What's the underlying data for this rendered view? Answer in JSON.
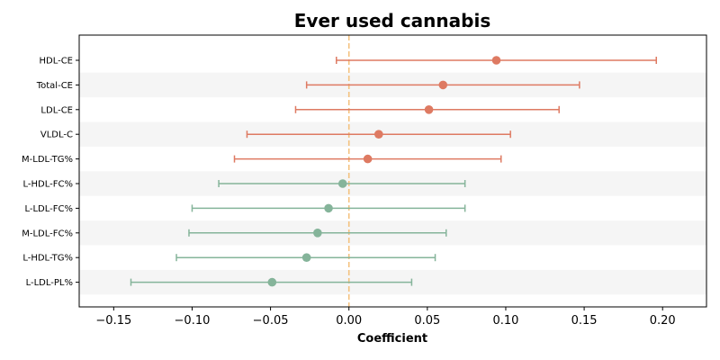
{
  "chart_data": {
    "type": "forest",
    "title": "Ever used cannabis",
    "xlabel": "Coefficient",
    "xlim": [
      -0.172,
      0.228
    ],
    "xticks": [
      -0.15,
      -0.1,
      -0.05,
      0.0,
      0.05,
      0.1,
      0.15,
      0.2
    ],
    "xtick_labels": [
      "−0.15",
      "−0.10",
      "−0.05",
      "0.00",
      "0.05",
      "0.10",
      "0.15",
      "0.20"
    ],
    "reference_line": 0.0,
    "colors": {
      "positive": "#de7a62",
      "negative": "#85b49a",
      "reference": "#f4c27f",
      "band": "#f5f5f5"
    },
    "rows": [
      {
        "label": "HDL-CE",
        "coef": 0.094,
        "lower": -0.008,
        "upper": 0.196
      },
      {
        "label": "Total-CE",
        "coef": 0.06,
        "lower": -0.027,
        "upper": 0.147
      },
      {
        "label": "LDL-CE",
        "coef": 0.051,
        "lower": -0.034,
        "upper": 0.134
      },
      {
        "label": "VLDL-C",
        "coef": 0.019,
        "lower": -0.065,
        "upper": 0.103
      },
      {
        "label": "M-LDL-TG%",
        "coef": 0.012,
        "lower": -0.073,
        "upper": 0.097
      },
      {
        "label": "L-HDL-FC%",
        "coef": -0.004,
        "lower": -0.083,
        "upper": 0.074
      },
      {
        "label": "L-LDL-FC%",
        "coef": -0.013,
        "lower": -0.1,
        "upper": 0.074
      },
      {
        "label": "M-LDL-FC%",
        "coef": -0.02,
        "lower": -0.102,
        "upper": 0.062
      },
      {
        "label": "L-HDL-TG%",
        "coef": -0.027,
        "lower": -0.11,
        "upper": 0.055
      },
      {
        "label": "L-LDL-PL%",
        "coef": -0.049,
        "lower": -0.139,
        "upper": 0.04
      }
    ]
  }
}
